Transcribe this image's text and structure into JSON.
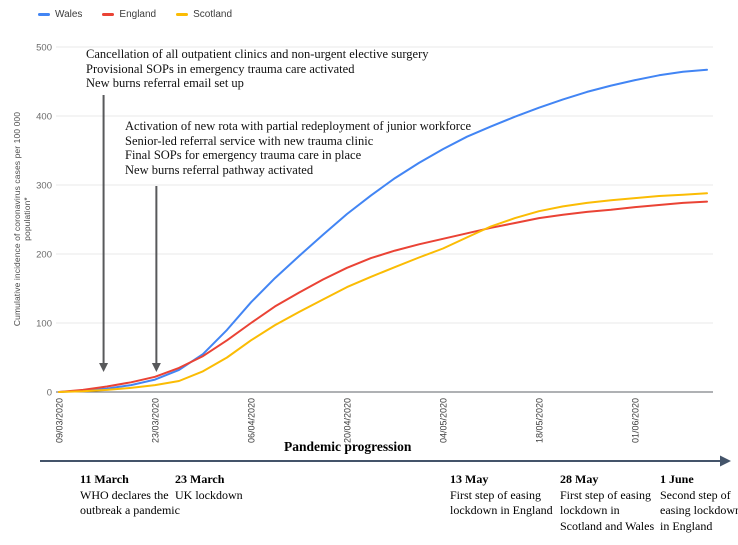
{
  "legend": {
    "items": [
      {
        "label": "Wales",
        "color": "#4285F4"
      },
      {
        "label": "England",
        "color": "#EA4335"
      },
      {
        "label": "Scotland",
        "color": "#FBBC04"
      }
    ]
  },
  "chart_data": {
    "type": "line",
    "title": "",
    "ylabel": "Cumulative incidence of coronavirus cases per 100 000 population*",
    "xlabel": "",
    "ylim": [
      0,
      500
    ],
    "yticks": [
      0,
      100,
      200,
      300,
      400,
      500
    ],
    "grid": true,
    "legend_position": "top-left",
    "x_tick_labels": [
      "09/03/2020",
      "23/03/2020",
      "06/04/2020",
      "20/04/2020",
      "04/05/2020",
      "18/05/2020",
      "01/06/2020"
    ],
    "x_tick_days": [
      0,
      14,
      28,
      42,
      56,
      70,
      84
    ],
    "sample_start_day": 0,
    "sample_step_days": 3.5,
    "series": [
      {
        "name": "Wales",
        "color": "#4285F4",
        "values": [
          0,
          2,
          5,
          10,
          18,
          32,
          55,
          90,
          130,
          165,
          197,
          228,
          258,
          285,
          310,
          332,
          352,
          370,
          385,
          399,
          412,
          424,
          435,
          444,
          452,
          459,
          464,
          467
        ]
      },
      {
        "name": "England",
        "color": "#EA4335",
        "values": [
          0,
          3,
          8,
          14,
          22,
          35,
          52,
          75,
          100,
          124,
          144,
          163,
          180,
          194,
          205,
          214,
          222,
          230,
          238,
          245,
          252,
          257,
          261,
          264,
          268,
          271,
          274,
          276
        ]
      },
      {
        "name": "Scotland",
        "color": "#FBBC04",
        "values": [
          0,
          1,
          3,
          6,
          10,
          16,
          30,
          50,
          75,
          97,
          116,
          134,
          152,
          167,
          181,
          195,
          208,
          224,
          240,
          252,
          262,
          269,
          274,
          278,
          281,
          284,
          286,
          288
        ]
      }
    ],
    "annotations": [
      {
        "lines": [
          "Cancellation of all outpatient clinics and non-urgent elective surgery",
          "Provisional SOPs in emergency trauma care activated",
          "New burns referral email set up"
        ],
        "arrow_day": 6.5
      },
      {
        "lines": [
          "Activation of new rota with partial redeployment of junior workforce",
          "Senior-led referral service with new trauma clinic",
          "Final SOPs for emergency trauma care in place",
          "New burns referral pathway activated"
        ],
        "arrow_day": 14.2
      }
    ]
  },
  "timeline": {
    "title": "Pandemic progression",
    "arrow_color": "#44546A",
    "events": [
      {
        "date": "11 March",
        "text": "WHO declares the outbreak a pandemic"
      },
      {
        "date": "23 March",
        "text": "UK lockdown"
      },
      {
        "date": "13 May",
        "text": "First step of easing lockdown in England"
      },
      {
        "date": "28 May",
        "text": "First step of easing lockdown in Scotland and Wales"
      },
      {
        "date": "1 June",
        "text": "Second step of easing lockdown in England"
      }
    ]
  }
}
